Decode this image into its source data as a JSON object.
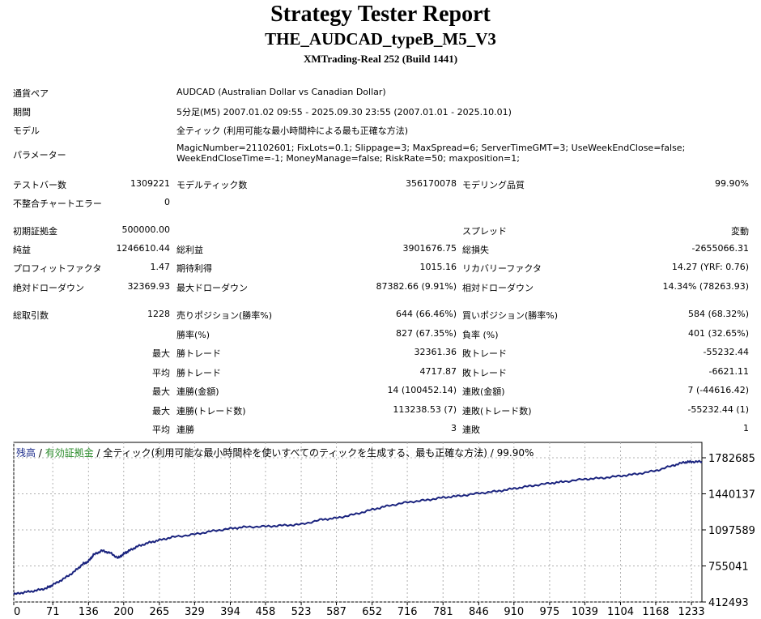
{
  "header": {
    "title": "Strategy Tester Report",
    "subtitle": "THE_AUDCAD_typeB_M5_V3",
    "build": "XMTrading-Real 252 (Build 1441)"
  },
  "info": {
    "pair_label": "通貨ペア",
    "pair_value": "AUDCAD (Australian Dollar vs Canadian Dollar)",
    "period_label": "期間",
    "period_value": "5分足(M5) 2007.01.02 09:55 - 2025.09.30 23:55 (2007.01.01 - 2025.10.01)",
    "model_label": "モデル",
    "model_value": "全ティック (利用可能な最小時間枠による最も正確な方法)",
    "params_label": "パラメーター",
    "params_line1": "MagicNumber=21102601; FixLots=0.1; Slippage=3; MaxSpread=6; ServerTimeGMT=3; UseWeekEndClose=false;",
    "params_line2": "WeekEndCloseTime=-1; MoneyManage=false; RiskRate=50; maxposition=1;"
  },
  "bars": {
    "bars_label": "テストバー数",
    "bars_value": "1309221",
    "ticks_label": "モデルティック数",
    "ticks_value": "356170078",
    "quality_label": "モデリング品質",
    "quality_value": "99.90%",
    "errors_label": "不整合チャートエラー",
    "errors_value": "0"
  },
  "results": {
    "deposit_label": "初期証拠金",
    "deposit_value": "500000.00",
    "spread_label": "スプレッド",
    "spread_value": "変動",
    "net_label": "純益",
    "net_value": "1246610.44",
    "gross_profit_label": "総利益",
    "gross_profit_value": "3901676.75",
    "gross_loss_label": "総損失",
    "gross_loss_value": "-2655066.31",
    "pf_label": "プロフィットファクタ",
    "pf_value": "1.47",
    "expected_label": "期待利得",
    "expected_value": "1015.16",
    "recovery_label": "リカバリーファクタ",
    "recovery_value": "14.27 (YRF: 0.76)",
    "abs_dd_label": "絶対ドローダウン",
    "abs_dd_value": "32369.93",
    "max_dd_label": "最大ドローダウン",
    "max_dd_value": "87382.66 (9.91%)",
    "rel_dd_label": "相対ドローダウン",
    "rel_dd_value": "14.34% (78263.93)"
  },
  "trades": {
    "total_label": "総取引数",
    "total_value": "1228",
    "short_label": "売りポジション(勝率%)",
    "short_value": "644 (66.46%)",
    "long_label": "買いポジション(勝率%)",
    "long_value": "584 (68.32%)",
    "win_rate_label": "勝率(%)",
    "win_rate_value": "827 (67.35%)",
    "loss_rate_label": "負率 (%)",
    "loss_rate_value": "401 (32.65%)",
    "largest_prefix": "最大",
    "largest_win_label": "勝トレード",
    "largest_win_value": "32361.36",
    "largest_loss_label": "敗トレード",
    "largest_loss_value": "-55232.44",
    "avg_prefix": "平均",
    "avg_win_label": "勝トレード",
    "avg_win_value": "4717.87",
    "avg_loss_label": "敗トレード",
    "avg_loss_value": "-6621.11",
    "max_cons_prefix": "最大",
    "max_cons_win_label": "連勝(金額)",
    "max_cons_win_value": "14 (100452.14)",
    "max_cons_loss_label": "連敗(金額)",
    "max_cons_loss_value": "7 (-44616.42)",
    "max_consp_prefix": "最大",
    "max_consp_win_label": "連勝(トレード数)",
    "max_consp_win_value": "113238.53 (7)",
    "max_consp_loss_label": "連敗(トレード数)",
    "max_consp_loss_value": "-55232.44 (1)",
    "avg_cons_prefix": "平均",
    "avg_cons_win_label": "連勝",
    "avg_cons_win_value": "3",
    "avg_cons_loss_label": "連敗",
    "avg_cons_loss_value": "1"
  },
  "chart_data": {
    "type": "line",
    "legend_balance": "残高",
    "legend_sep1": " / ",
    "legend_equity": "有効証拠金",
    "legend_rest": " / 全ティック(利用可能な最小時間枠を使いすべてのティックを生成する、最も正確な方法) / 99.90%",
    "x_ticks": [
      "0",
      "71",
      "136",
      "200",
      "265",
      "329",
      "394",
      "458",
      "523",
      "587",
      "652",
      "716",
      "781",
      "846",
      "910",
      "975",
      "1039",
      "1104",
      "1168",
      "1233"
    ],
    "y_ticks": [
      "1782685",
      "1440137",
      "1097589",
      "755041",
      "412493"
    ],
    "xlim": [
      0,
      1252
    ],
    "ylim": [
      412493,
      1782685
    ],
    "colors": {
      "balance": "#1a237e",
      "equity": "#2e7d32",
      "grid": "#b0b0b0"
    },
    "series": [
      {
        "name": "残高",
        "x": [
          0,
          20,
          40,
          60,
          71,
          90,
          110,
          125,
          136,
          145,
          160,
          175,
          190,
          200,
          210,
          225,
          245,
          265,
          290,
          329,
          360,
          394,
          420,
          458,
          490,
          523,
          560,
          587,
          620,
          652,
          680,
          716,
          750,
          781,
          810,
          846,
          880,
          910,
          940,
          975,
          1000,
          1039,
          1070,
          1104,
          1135,
          1168,
          1200,
          1220,
          1233,
          1252
        ],
        "y": [
          485000,
          505000,
          520000,
          545000,
          575000,
          630000,
          700000,
          770000,
          800000,
          860000,
          900000,
          880000,
          830000,
          870000,
          900000,
          940000,
          975000,
          1000000,
          1030000,
          1055000,
          1085000,
          1110000,
          1125000,
          1130000,
          1140000,
          1150000,
          1195000,
          1210000,
          1245000,
          1290000,
          1325000,
          1360000,
          1380000,
          1405000,
          1420000,
          1445000,
          1465000,
          1490000,
          1515000,
          1540000,
          1555000,
          1580000,
          1590000,
          1610000,
          1630000,
          1660000,
          1710000,
          1740000,
          1745000,
          1745000
        ]
      }
    ]
  }
}
